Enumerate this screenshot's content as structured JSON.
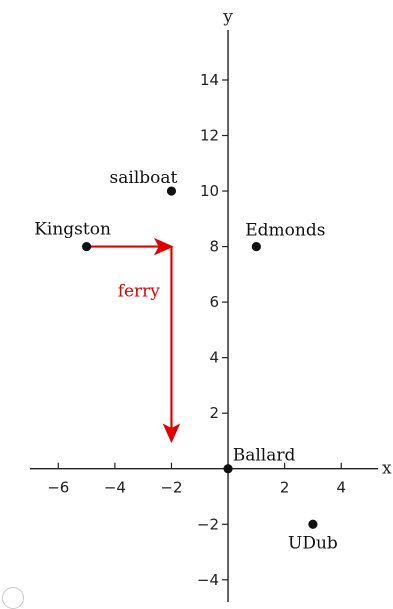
{
  "chart_data": {
    "type": "scatter",
    "xlabel": "x",
    "ylabel": "y",
    "xlim": [
      -7,
      5.3
    ],
    "ylim": [
      -4.8,
      15.8
    ],
    "xticks": [
      -6,
      -4,
      -2,
      2,
      4
    ],
    "yticks": [
      -4,
      -2,
      2,
      4,
      6,
      8,
      10,
      12,
      14
    ],
    "xtick_labels": [
      "−6",
      "−4",
      "−2",
      "2",
      "4"
    ],
    "ytick_labels": [
      "−4",
      "−2",
      "2",
      "4",
      "6",
      "8",
      "10",
      "12",
      "14"
    ],
    "points": [
      {
        "label": "sailboat",
        "x": -2,
        "y": 10
      },
      {
        "label": "Kingston",
        "x": -5,
        "y": 8
      },
      {
        "label": "Edmonds",
        "x": 1,
        "y": 8
      },
      {
        "label": "Ballard",
        "x": 0,
        "y": 0
      },
      {
        "label": "UDub",
        "x": 3,
        "y": -2
      }
    ],
    "arrows": [
      {
        "from": [
          -5,
          8
        ],
        "to": [
          -2,
          8
        ],
        "color": "#e00000"
      },
      {
        "from": [
          -2,
          8
        ],
        "to": [
          -2,
          1
        ],
        "color": "#e00000"
      }
    ],
    "annotation": {
      "text": "ferry",
      "x": -3.9,
      "y": 6.2,
      "color": "#e00000"
    },
    "grid": false
  }
}
